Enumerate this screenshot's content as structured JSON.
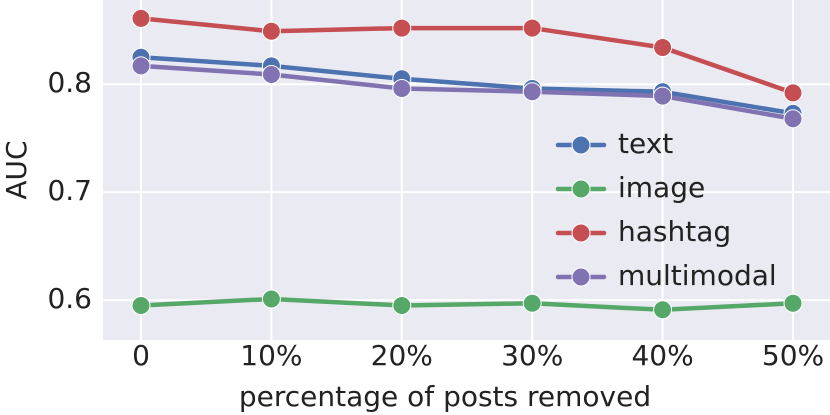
{
  "chart_data": {
    "type": "line",
    "xlabel": "percentage of posts removed",
    "ylabel": "AUC",
    "categories": [
      "0",
      "10%",
      "20%",
      "30%",
      "40%",
      "50%"
    ],
    "series": [
      {
        "name": "text",
        "color": "#4c72b0",
        "values": [
          0.825,
          0.817,
          0.805,
          0.796,
          0.793,
          0.773
        ]
      },
      {
        "name": "image",
        "color": "#55a868",
        "values": [
          0.595,
          0.601,
          0.595,
          0.597,
          0.591,
          0.597
        ]
      },
      {
        "name": "hashtag",
        "color": "#c44e52",
        "values": [
          0.861,
          0.849,
          0.852,
          0.852,
          0.834,
          0.792
        ]
      },
      {
        "name": "multimodal",
        "color": "#8172b2",
        "values": [
          0.817,
          0.809,
          0.796,
          0.793,
          0.789,
          0.768
        ]
      }
    ],
    "ylim": [
      0.563,
      0.878
    ],
    "yticks": [
      0.6,
      0.7,
      0.8
    ],
    "grid": true,
    "legend": "lower right"
  }
}
